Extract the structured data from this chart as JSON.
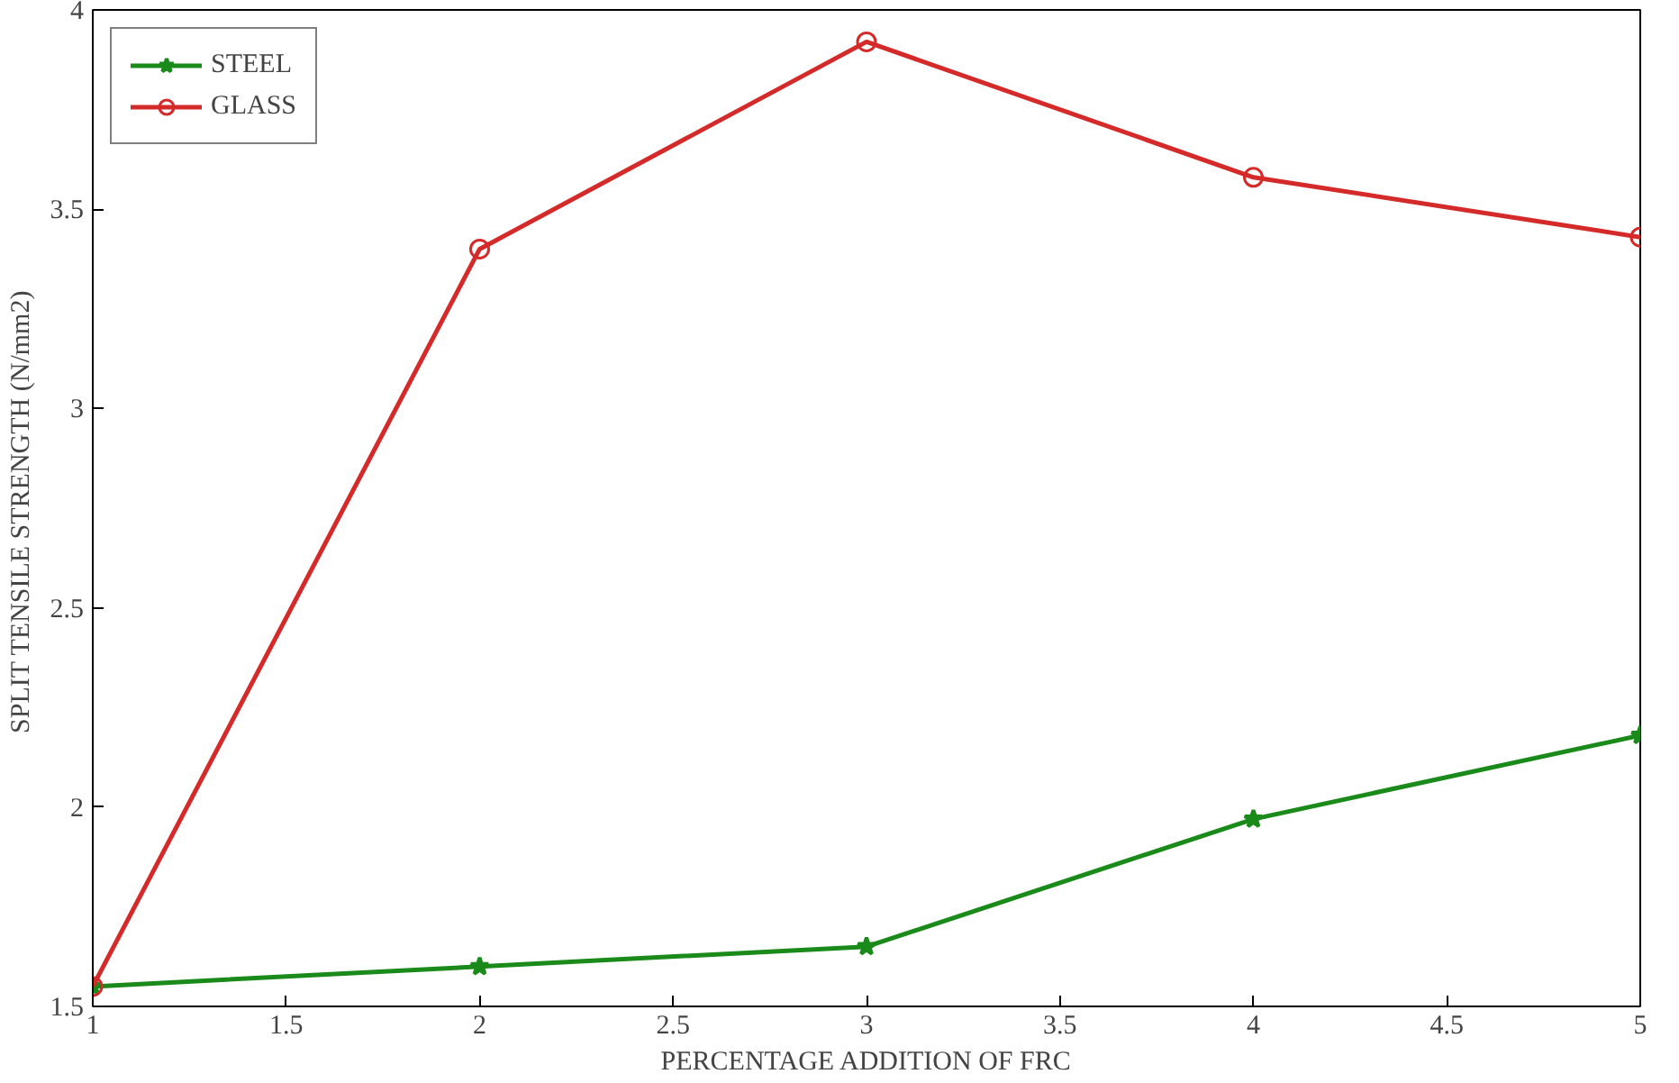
{
  "chart_data": {
    "type": "line",
    "xlabel": "PERCENTAGE ADDITION OF FRC",
    "ylabel": "SPLIT TENSILE  STRENGTH (N/mm2)",
    "x": [
      1,
      2,
      3,
      4,
      5
    ],
    "series": [
      {
        "name": "STEEL",
        "color": "#1a8a1a",
        "marker": "star",
        "values": [
          1.55,
          1.6,
          1.65,
          1.97,
          2.18
        ]
      },
      {
        "name": "GLASS",
        "color": "#d42a2a",
        "marker": "circle",
        "values": [
          1.55,
          3.4,
          3.92,
          3.58,
          3.43
        ]
      }
    ],
    "xlim": [
      1,
      5
    ],
    "ylim": [
      1.5,
      4
    ],
    "xticks": [
      1,
      1.5,
      2,
      2.5,
      3,
      3.5,
      4,
      4.5,
      5
    ],
    "yticks": [
      1.5,
      2,
      2.5,
      3,
      3.5,
      4
    ],
    "grid": false,
    "legend": "top left",
    "line_style": "solid"
  }
}
